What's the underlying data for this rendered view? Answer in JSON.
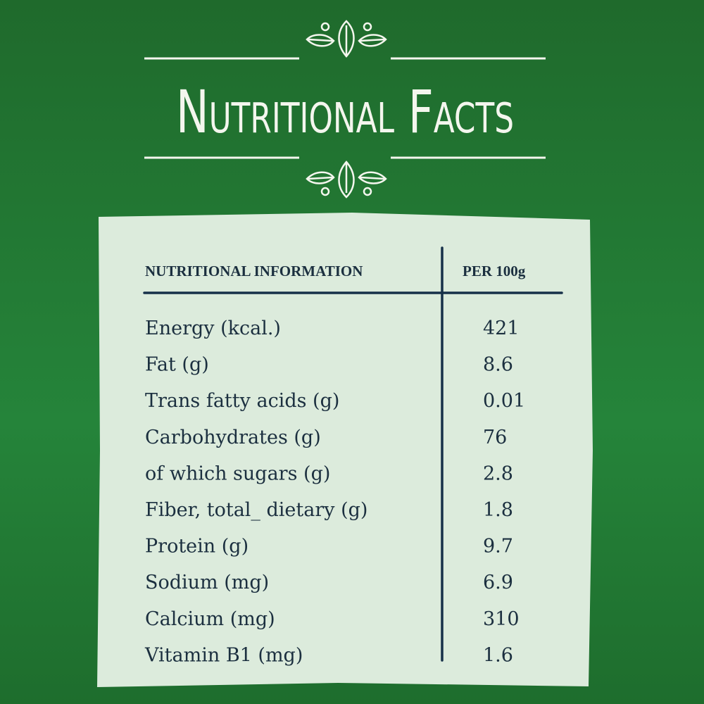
{
  "header": {
    "title": "Nutritional Facts"
  },
  "table": {
    "columns": [
      "NUTRITIONAL INFORMATION",
      "PER 100g"
    ],
    "rows": [
      [
        "Energy (kcal.)",
        421
      ],
      [
        "Fat (g)",
        8.6
      ],
      [
        "Trans fatty acids  (g)",
        0.01
      ],
      [
        "Carbohydrates (g)",
        76
      ],
      [
        "of which sugars (g)",
        2.8
      ],
      [
        "Fiber, total_ dietary (g)",
        1.8
      ],
      [
        "Protein (g)",
        9.7
      ],
      [
        "Sodium (mg)",
        6.9
      ],
      [
        "Calcium (mg)",
        310
      ],
      [
        "Vitamin B1 (mg)",
        1.6
      ]
    ]
  }
}
